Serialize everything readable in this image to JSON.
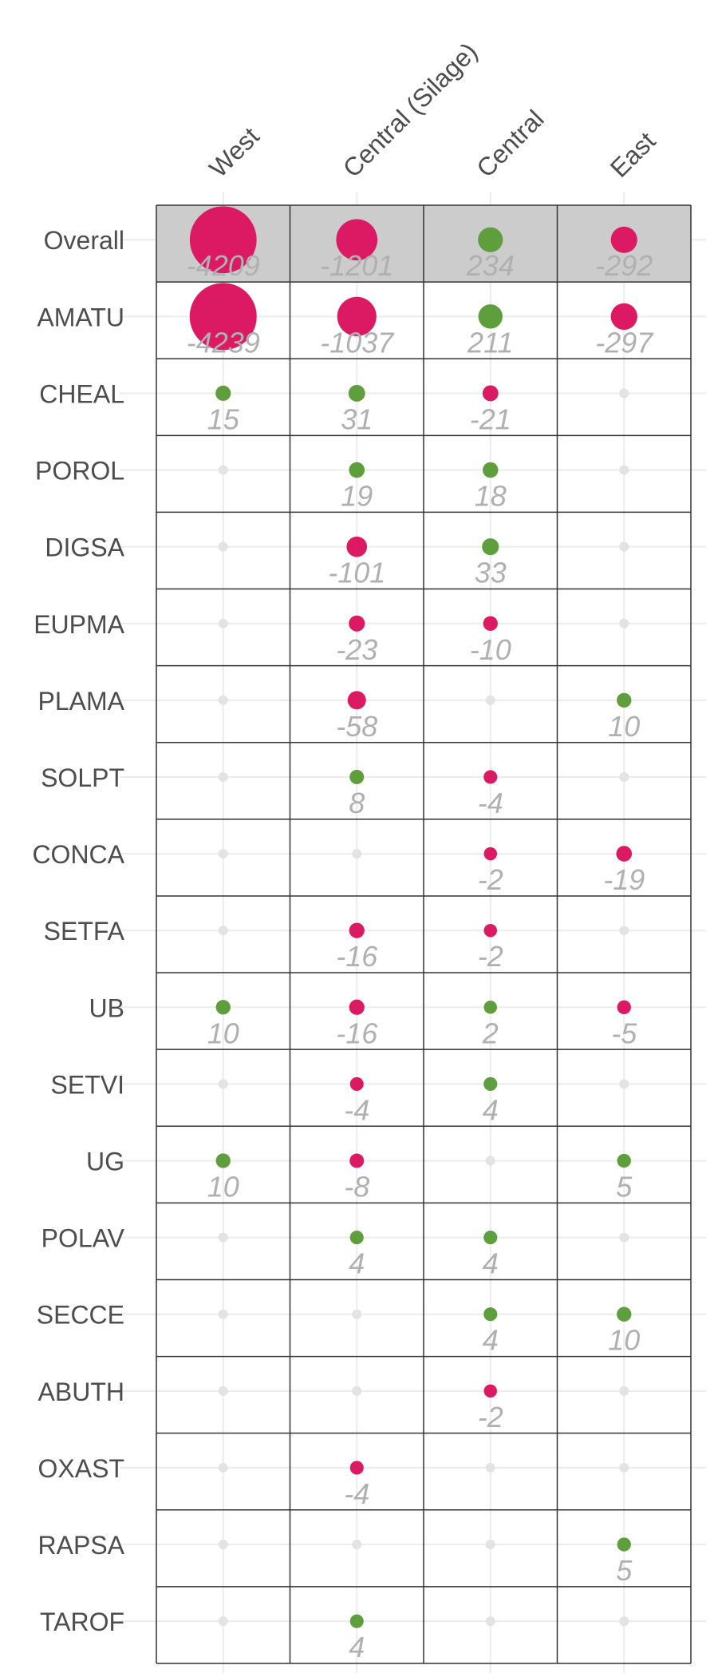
{
  "chart_data": {
    "type": "scatter",
    "columns": [
      "West",
      "Central (Silage)",
      "Central",
      "East"
    ],
    "rows": [
      "Overall",
      "AMATU",
      "CHEAL",
      "POROL",
      "DIGSA",
      "EUPMA",
      "PLAMA",
      "SOLPT",
      "CONCA",
      "SETFA",
      "UB",
      "SETVI",
      "UG",
      "POLAV",
      "SECCE",
      "ABUTH",
      "OXAST",
      "RAPSA",
      "TAROF"
    ],
    "highlighted_rows": [
      "Overall"
    ],
    "values": [
      [
        -4209,
        -1201,
        234,
        -292
      ],
      [
        -4239,
        -1037,
        211,
        -297
      ],
      [
        15,
        31,
        -21,
        null
      ],
      [
        null,
        19,
        18,
        null
      ],
      [
        null,
        -101,
        33,
        null
      ],
      [
        null,
        -23,
        -10,
        null
      ],
      [
        null,
        -58,
        null,
        10
      ],
      [
        null,
        8,
        -4,
        null
      ],
      [
        null,
        null,
        -2,
        -19
      ],
      [
        null,
        -16,
        -2,
        null
      ],
      [
        10,
        -16,
        2,
        -5
      ],
      [
        null,
        -4,
        4,
        null
      ],
      [
        10,
        -8,
        null,
        5
      ],
      [
        null,
        4,
        4,
        null
      ],
      [
        null,
        null,
        4,
        10
      ],
      [
        null,
        null,
        -2,
        null
      ],
      [
        null,
        -4,
        null,
        null
      ],
      [
        null,
        null,
        null,
        5
      ],
      [
        null,
        4,
        null,
        null
      ]
    ],
    "colors": {
      "positive": "#5e9e3c",
      "negative": "#dc1a63",
      "missing": "#e3e3e3",
      "label": "#b0b0b0",
      "highlight_background": "#cccccc"
    },
    "grid": true
  }
}
